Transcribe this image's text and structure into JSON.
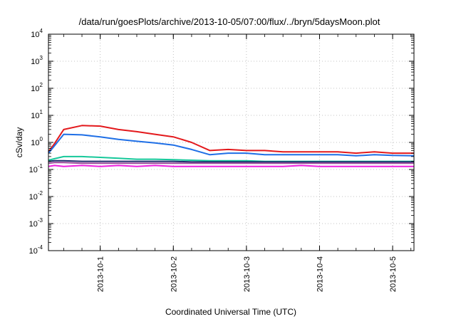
{
  "chart_data": {
    "type": "line",
    "title": "/data/run/goesPlots/archive/2013-10-05/07:00/flux/../bryn/5daysMoon.plot",
    "xlabel": "Coordinated Universal Time (UTC)",
    "ylabel": "cSv/day",
    "yscale": "log",
    "ylim": [
      0.0001,
      10000
    ],
    "xlim": [
      "2013-09-30T07:00",
      "2013-10-05T07:00"
    ],
    "grid": true,
    "y_ticks": [
      {
        "value": 0.0001,
        "base": "10",
        "exp": "-4"
      },
      {
        "value": 0.001,
        "base": "10",
        "exp": "-3"
      },
      {
        "value": 0.01,
        "base": "10",
        "exp": "-2"
      },
      {
        "value": 0.1,
        "base": "10",
        "exp": "-1"
      },
      {
        "value": 1,
        "base": "10",
        "exp": "0"
      },
      {
        "value": 10,
        "base": "10",
        "exp": "1"
      },
      {
        "value": 100,
        "base": "10",
        "exp": "2"
      },
      {
        "value": 1000,
        "base": "10",
        "exp": "3"
      },
      {
        "value": 10000,
        "base": "10",
        "exp": "4"
      }
    ],
    "x_ticks": [
      "2013-10-1",
      "2013-10-2",
      "2013-10-3",
      "2013-10-4",
      "2013-10-5"
    ],
    "x_tick_dates": [
      "2013-10-01T00:00",
      "2013-10-02T00:00",
      "2013-10-03T00:00",
      "2013-10-04T00:00",
      "2013-10-05T00:00"
    ],
    "x": [
      "2013-09-30T07:00",
      "2013-09-30T09:00",
      "2013-09-30T12:00",
      "2013-09-30T18:00",
      "2013-10-01T00:00",
      "2013-10-01T06:00",
      "2013-10-01T12:00",
      "2013-10-01T18:00",
      "2013-10-02T00:00",
      "2013-10-02T06:00",
      "2013-10-02T12:00",
      "2013-10-02T18:00",
      "2013-10-03T00:00",
      "2013-10-03T06:00",
      "2013-10-03T12:00",
      "2013-10-03T18:00",
      "2013-10-04T00:00",
      "2013-10-04T06:00",
      "2013-10-04T12:00",
      "2013-10-04T18:00",
      "2013-10-05T00:00",
      "2013-10-05T07:00"
    ],
    "series": [
      {
        "color": "#e3191c",
        "values": [
          0.45,
          0.9,
          3.0,
          4.2,
          4.0,
          3.0,
          2.5,
          2.0,
          1.6,
          1.0,
          0.5,
          0.55,
          0.5,
          0.5,
          0.45,
          0.45,
          0.45,
          0.45,
          0.4,
          0.45,
          0.4,
          0.4
        ]
      },
      {
        "color": "#1f6fe6",
        "values": [
          0.4,
          0.75,
          2.0,
          1.9,
          1.6,
          1.3,
          1.1,
          0.95,
          0.8,
          0.55,
          0.35,
          0.4,
          0.4,
          0.35,
          0.35,
          0.35,
          0.35,
          0.35,
          0.32,
          0.35,
          0.33,
          0.32
        ]
      },
      {
        "color": "#16c89a",
        "values": [
          0.22,
          0.25,
          0.3,
          0.3,
          0.28,
          0.26,
          0.24,
          0.24,
          0.23,
          0.22,
          0.21,
          0.21,
          0.21,
          0.2,
          0.2,
          0.2,
          0.2,
          0.2,
          0.2,
          0.2,
          0.2,
          0.2
        ]
      },
      {
        "color": "#1f2a6b",
        "values": [
          0.2,
          0.21,
          0.21,
          0.2,
          0.2,
          0.2,
          0.2,
          0.2,
          0.2,
          0.19,
          0.19,
          0.19,
          0.19,
          0.19,
          0.19,
          0.19,
          0.19,
          0.19,
          0.19,
          0.19,
          0.19,
          0.19
        ]
      },
      {
        "color": "#9a4a9a",
        "values": [
          0.17,
          0.18,
          0.18,
          0.17,
          0.17,
          0.17,
          0.17,
          0.17,
          0.17,
          0.17,
          0.17,
          0.17,
          0.17,
          0.17,
          0.17,
          0.17,
          0.17,
          0.17,
          0.17,
          0.17,
          0.17,
          0.17
        ]
      },
      {
        "color": "#ee1fe0",
        "values": [
          0.13,
          0.14,
          0.13,
          0.14,
          0.13,
          0.14,
          0.13,
          0.14,
          0.13,
          0.13,
          0.13,
          0.13,
          0.13,
          0.13,
          0.13,
          0.14,
          0.13,
          0.13,
          0.13,
          0.13,
          0.13,
          0.13
        ]
      }
    ]
  }
}
